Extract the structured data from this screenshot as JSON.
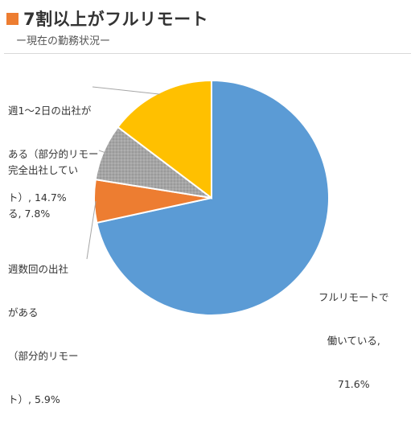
{
  "header": {
    "title": "7割以上がフルリモート",
    "subtitle": "ー現在の勤務状況ー",
    "accent_color": "#ED7D31"
  },
  "chart_data": {
    "type": "pie",
    "title": "7割以上がフルリモート",
    "subtitle": "ー現在の勤務状況ー",
    "start_angle_deg": 0,
    "direction": "clockwise",
    "slices": [
      {
        "label_lines": [
          "フルリモートで",
          "働いている,",
          "71.6%"
        ],
        "value": 71.6,
        "color": "#5B9BD5"
      },
      {
        "label_lines": [
          "週数回の出社",
          "がある",
          "（部分的リモー",
          "ト）, 5.9%"
        ],
        "value": 5.9,
        "color": "#ED7D31"
      },
      {
        "label_lines": [
          "完全出社してい",
          "る, 7.8%"
        ],
        "value": 7.8,
        "color": "#A5A5A5"
      },
      {
        "label_lines": [
          "週1～2日の出社が",
          "ある（部分的リモー",
          "ト）, 14.7%"
        ],
        "value": 14.7,
        "color": "#FFC000"
      }
    ]
  }
}
